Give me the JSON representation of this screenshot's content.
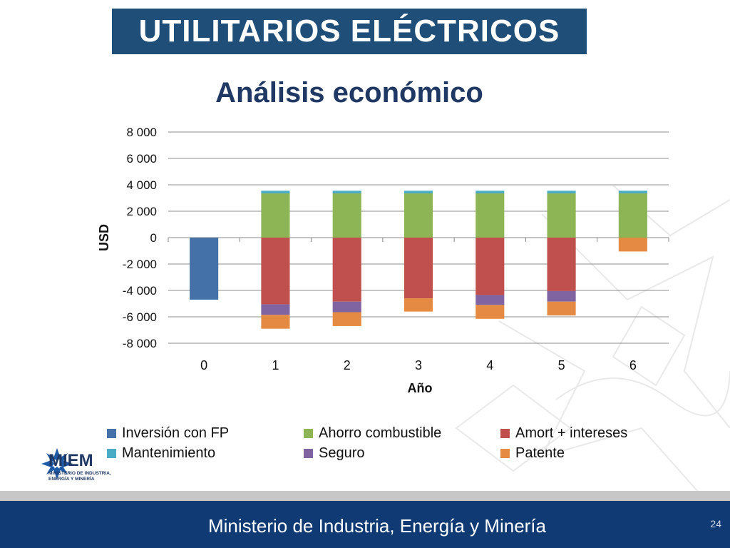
{
  "header": {
    "title": "UTILITARIOS ELÉCTRICOS"
  },
  "slide": {
    "subtitle": "Análisis económico",
    "page_number": "24"
  },
  "footer": {
    "ministry": "Ministerio de Industria, Energía y Minería"
  },
  "logo": {
    "acronym": "MIEM",
    "subtitle_line1": "MINISTERIO DE INDUSTRIA,",
    "subtitle_line2": "ENERGÍA Y MINERÍA"
  },
  "colors": {
    "title_bg": "#1f4e79",
    "footer_bg": "#103a73",
    "inversion": "#4472a8",
    "ahorro": "#8db556",
    "amort": "#c0504d",
    "mantenimiento": "#4bacc6",
    "seguro": "#8064a2",
    "patente": "#e48a42"
  },
  "chart_data": {
    "type": "bar",
    "stacked": true,
    "xlabel": "Año",
    "ylabel": "USD",
    "ylim": [
      -8000,
      8000
    ],
    "yticks": [
      8000,
      6000,
      4000,
      2000,
      0,
      -2000,
      -4000,
      -6000,
      -8000
    ],
    "ytick_labels": [
      "8 000",
      "6 000",
      "4 000",
      "2 000",
      "0",
      "-2 000",
      "-4 000",
      "-6 000",
      "-8 000"
    ],
    "categories": [
      "0",
      "1",
      "2",
      "3",
      "4",
      "5",
      "6"
    ],
    "legend_position": "bottom",
    "grid": true,
    "series": [
      {
        "name": "Inversión con FP",
        "color": "#4472a8",
        "values": [
          -4700,
          0,
          0,
          0,
          0,
          0,
          0
        ]
      },
      {
        "name": "Ahorro combustible",
        "color": "#8db556",
        "values": [
          0,
          3350,
          3350,
          3350,
          3350,
          3350,
          3350
        ]
      },
      {
        "name": "Amort + intereses",
        "color": "#c0504d",
        "values": [
          0,
          -5050,
          -4850,
          -4600,
          -4350,
          -4050,
          0
        ]
      },
      {
        "name": "Mantenimiento",
        "color": "#4bacc6",
        "values": [
          0,
          200,
          200,
          200,
          200,
          200,
          200
        ]
      },
      {
        "name": "Seguro",
        "color": "#8064a2",
        "values": [
          0,
          -800,
          -800,
          0,
          -750,
          -800,
          0
        ]
      },
      {
        "name": "Patente",
        "color": "#e48a42",
        "values": [
          0,
          -1050,
          -1050,
          -1000,
          -1050,
          -1050,
          -1050
        ]
      }
    ]
  }
}
